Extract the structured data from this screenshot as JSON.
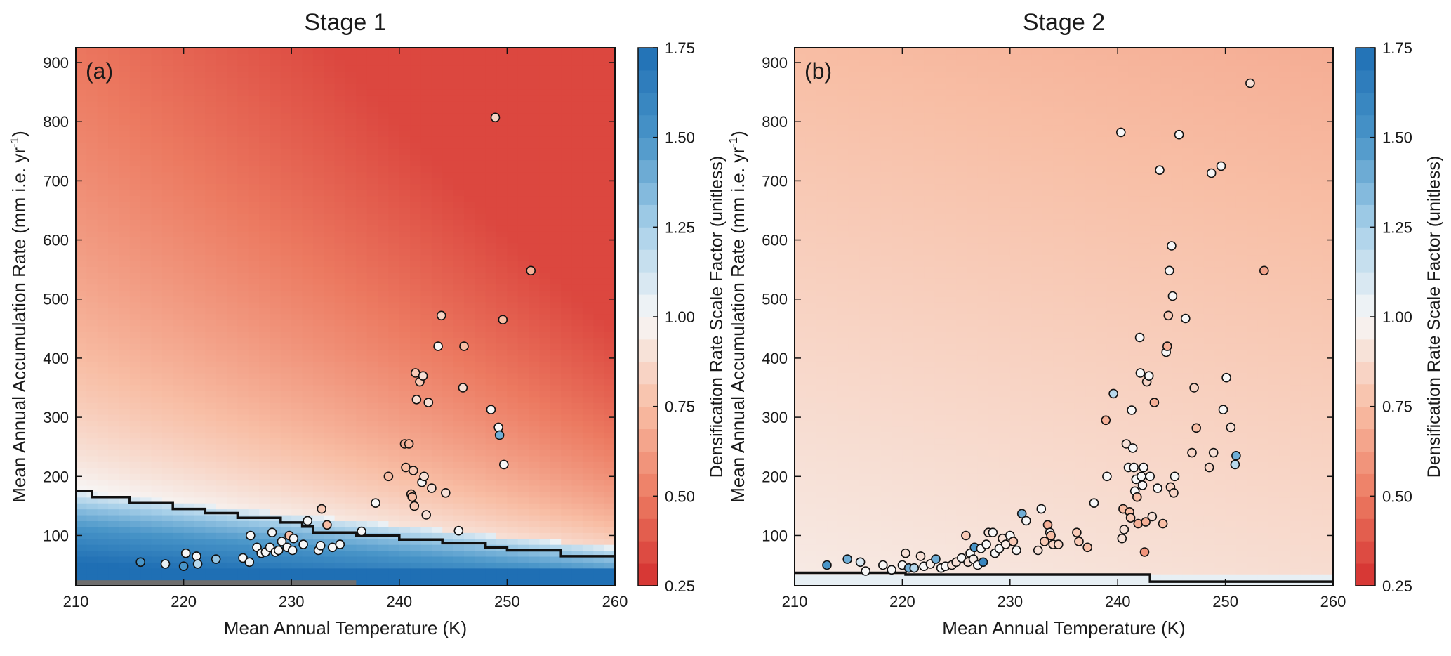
{
  "chart_data": [
    {
      "type": "scatter",
      "panel_label": "(a)",
      "title": "Stage 1",
      "xlabel": "Mean Annual Temperature (K)",
      "ylabel": "Mean Annual Accumulation Rate (mm i.e. yr",
      "ylabel_superscript": "-1",
      "ylabel_suffix": ")",
      "xlim": [
        210,
        260
      ],
      "ylim": [
        15,
        925
      ],
      "xticks": [
        210,
        220,
        230,
        240,
        250,
        260
      ],
      "yticks": [
        100,
        200,
        300,
        400,
        500,
        600,
        700,
        800,
        900
      ],
      "background": "heatmap of densification rate scale factor over temperature and accumulation rate; red (<1) at high accumulation, blue (>1) at low accumulation",
      "boundary_line": {
        "description": "stepped line where scale factor = 1",
        "points": [
          [
            210,
            175
          ],
          [
            211.5,
            175
          ],
          [
            211.5,
            165
          ],
          [
            215,
            165
          ],
          [
            215,
            155
          ],
          [
            219,
            155
          ],
          [
            219,
            145
          ],
          [
            222,
            145
          ],
          [
            222,
            138
          ],
          [
            225,
            138
          ],
          [
            225,
            130
          ],
          [
            229,
            130
          ],
          [
            229,
            122
          ],
          [
            231,
            122
          ],
          [
            231,
            115
          ],
          [
            232,
            115
          ],
          [
            232,
            105
          ],
          [
            236,
            105
          ],
          [
            236,
            100
          ],
          [
            240,
            100
          ],
          [
            240,
            93
          ],
          [
            244,
            93
          ],
          [
            244,
            87
          ],
          [
            248,
            87
          ],
          [
            248,
            80
          ],
          [
            250,
            80
          ],
          [
            250,
            75
          ],
          [
            255,
            75
          ],
          [
            255,
            65
          ],
          [
            260,
            65
          ]
        ]
      },
      "points": [
        [
          216,
          55,
          1.5
        ],
        [
          218.3,
          52,
          1.05
        ],
        [
          220.2,
          70,
          1.0
        ],
        [
          220,
          48,
          1.5
        ],
        [
          221.2,
          65,
          1.0
        ],
        [
          221.3,
          52,
          1.2
        ],
        [
          223,
          60,
          1.3
        ],
        [
          225.5,
          62,
          1.0
        ],
        [
          226.1,
          55,
          1.05
        ],
        [
          226.2,
          100,
          1.0
        ],
        [
          226.8,
          80,
          1.0
        ],
        [
          227.2,
          70,
          1.0
        ],
        [
          227.6,
          72,
          1.0
        ],
        [
          228,
          80,
          1.0
        ],
        [
          228.2,
          105,
          1.0
        ],
        [
          228.5,
          72,
          1.0
        ],
        [
          228.8,
          75,
          1.0
        ],
        [
          229.1,
          90,
          1.0
        ],
        [
          229.6,
          80,
          1.0
        ],
        [
          229.8,
          100,
          0.75
        ],
        [
          230.1,
          75,
          1.0
        ],
        [
          230.2,
          95,
          1.0
        ],
        [
          231.1,
          85,
          1.0
        ],
        [
          231.5,
          125,
          1.0
        ],
        [
          232.5,
          75,
          1.0
        ],
        [
          232.7,
          83,
          1.0
        ],
        [
          232.8,
          145,
          0.8
        ],
        [
          233.3,
          118,
          0.75
        ],
        [
          233.8,
          80,
          1.0
        ],
        [
          234.5,
          85,
          1.0
        ],
        [
          236.5,
          107,
          1.0
        ],
        [
          237.8,
          155,
          1.0
        ],
        [
          239,
          200,
          0.75
        ],
        [
          240.5,
          255,
          0.7
        ],
        [
          240.6,
          215,
          0.75
        ],
        [
          240.9,
          255,
          0.72
        ],
        [
          241.1,
          170,
          0.75
        ],
        [
          241.2,
          165,
          0.75
        ],
        [
          241.3,
          210,
          0.8
        ],
        [
          241.4,
          150,
          0.8
        ],
        [
          241.5,
          375,
          0.8
        ],
        [
          241.6,
          330,
          0.9
        ],
        [
          241.9,
          360,
          0.8
        ],
        [
          242.1,
          190,
          1.0
        ],
        [
          242.2,
          370,
          0.9
        ],
        [
          242.3,
          200,
          0.9
        ],
        [
          242.5,
          135,
          0.9
        ],
        [
          242.7,
          325,
          0.9
        ],
        [
          243,
          180,
          0.9
        ],
        [
          243.6,
          420,
          1.0
        ],
        [
          243.9,
          472,
          0.85
        ],
        [
          244.3,
          172,
          0.9
        ],
        [
          245.5,
          108,
          1.0
        ],
        [
          245.9,
          350,
          0.9
        ],
        [
          246,
          420,
          0.75
        ],
        [
          248.5,
          313,
          1.0
        ],
        [
          248.9,
          807,
          0.85
        ],
        [
          249.2,
          283,
          1.0
        ],
        [
          249.3,
          270,
          1.4
        ],
        [
          249.6,
          465,
          0.75
        ],
        [
          249.7,
          220,
          1.0
        ],
        [
          252.2,
          548,
          0.7
        ]
      ]
    },
    {
      "type": "scatter",
      "panel_label": "(b)",
      "title": "Stage 2",
      "xlabel": "Mean Annual Temperature (K)",
      "ylabel": "Mean Annual Accumulation Rate (mm i.e. yr",
      "ylabel_superscript": "-1",
      "ylabel_suffix": ")",
      "xlim": [
        210,
        260
      ],
      "ylim": [
        15,
        925
      ],
      "xticks": [
        210,
        220,
        230,
        240,
        250,
        260
      ],
      "yticks": [
        100,
        200,
        300,
        400,
        500,
        600,
        700,
        800,
        900
      ],
      "background": "heatmap of densification rate scale factor; nearly uniform light orange (~0.8-0.95)",
      "boundary_line": {
        "description": "stepped line where scale factor = 1",
        "points": [
          [
            210,
            37
          ],
          [
            220.3,
            37
          ],
          [
            220.3,
            34
          ],
          [
            243,
            34
          ],
          [
            243,
            22
          ],
          [
            260,
            22
          ]
        ]
      },
      "points": [
        [
          213,
          50,
          1.5
        ],
        [
          214.9,
          60,
          1.4
        ],
        [
          216.1,
          55,
          1.1
        ],
        [
          216.6,
          40,
          1.0
        ],
        [
          218.2,
          50,
          1.0
        ],
        [
          219,
          42,
          1.0
        ],
        [
          220,
          50,
          1.0
        ],
        [
          220.3,
          70,
          0.9
        ],
        [
          220.6,
          45,
          1.4
        ],
        [
          221.1,
          45,
          1.2
        ],
        [
          221.7,
          65,
          0.9
        ],
        [
          222,
          48,
          1.0
        ],
        [
          222.6,
          52,
          0.95
        ],
        [
          223.1,
          60,
          1.4
        ],
        [
          223.6,
          45,
          1.0
        ],
        [
          224,
          48,
          1.0
        ],
        [
          224.6,
          50,
          0.9
        ],
        [
          225,
          55,
          0.9
        ],
        [
          225.5,
          62,
          1.0
        ],
        [
          225.9,
          100,
          0.8
        ],
        [
          226.1,
          55,
          0.9
        ],
        [
          226.3,
          70,
          1.0
        ],
        [
          226.6,
          60,
          0.95
        ],
        [
          226.7,
          80,
          1.5
        ],
        [
          227,
          50,
          1.0
        ],
        [
          227.3,
          78,
          1.0
        ],
        [
          227.5,
          55,
          1.6
        ],
        [
          227.8,
          85,
          1.0
        ],
        [
          228,
          105,
          0.9
        ],
        [
          228.4,
          105,
          1.0
        ],
        [
          228.6,
          70,
          1.0
        ],
        [
          229,
          78,
          1.0
        ],
        [
          229.3,
          95,
          0.9
        ],
        [
          229.6,
          85,
          0.95
        ],
        [
          230,
          100,
          1.0
        ],
        [
          230.3,
          90,
          0.8
        ],
        [
          230.6,
          75,
          1.0
        ],
        [
          231.1,
          137,
          1.4
        ],
        [
          231.5,
          125,
          1.0
        ],
        [
          232.6,
          75,
          0.9
        ],
        [
          232.9,
          145,
          1.0
        ],
        [
          233.2,
          90,
          0.8
        ],
        [
          233.5,
          118,
          0.7
        ],
        [
          233.7,
          105,
          1.0
        ],
        [
          233.8,
          100,
          0.75
        ],
        [
          234,
          85,
          0.85
        ],
        [
          234.5,
          85,
          0.85
        ],
        [
          236.2,
          105,
          0.8
        ],
        [
          236.4,
          90,
          0.8
        ],
        [
          237.2,
          80,
          0.75
        ],
        [
          237.8,
          155,
          1.0
        ],
        [
          238.9,
          295,
          0.7
        ],
        [
          239,
          200,
          1.0
        ],
        [
          239.6,
          340,
          1.2
        ],
        [
          240.3,
          782,
          1.0
        ],
        [
          240.4,
          95,
          0.9
        ],
        [
          240.5,
          145,
          0.75
        ],
        [
          240.6,
          110,
          0.9
        ],
        [
          240.8,
          255,
          0.9
        ],
        [
          241,
          215,
          1.0
        ],
        [
          241.1,
          140,
          0.75
        ],
        [
          241.2,
          130,
          0.8
        ],
        [
          241.3,
          312,
          1.0
        ],
        [
          241.4,
          248,
          1.0
        ],
        [
          241.5,
          215,
          1.0
        ],
        [
          241.6,
          175,
          1.0
        ],
        [
          241.7,
          195,
          1.0
        ],
        [
          241.8,
          165,
          0.75
        ],
        [
          241.9,
          120,
          0.7
        ],
        [
          242.05,
          435,
          1.0
        ],
        [
          242.1,
          375,
          1.0
        ],
        [
          242.2,
          200,
          1.0
        ],
        [
          242.3,
          185,
          1.0
        ],
        [
          242.4,
          215,
          1.0
        ],
        [
          242.5,
          72,
          0.6
        ],
        [
          242.6,
          123,
          0.7
        ],
        [
          242.7,
          360,
          0.85
        ],
        [
          242.9,
          370,
          1.0
        ],
        [
          243,
          200,
          1.0
        ],
        [
          243.2,
          132,
          0.9
        ],
        [
          243.4,
          325,
          0.7
        ],
        [
          243.7,
          180,
          1.0
        ],
        [
          243.9,
          718,
          1.0
        ],
        [
          244.2,
          120,
          0.75
        ],
        [
          244.5,
          410,
          1.0
        ],
        [
          244.6,
          420,
          0.7
        ],
        [
          244.7,
          472,
          0.8
        ],
        [
          244.8,
          548,
          1.0
        ],
        [
          244.9,
          182,
          0.85
        ],
        [
          245,
          590,
          1.0
        ],
        [
          245.1,
          505,
          1.0
        ],
        [
          245.2,
          172,
          0.85
        ],
        [
          245.3,
          200,
          1.0
        ],
        [
          245.7,
          778,
          1.0
        ],
        [
          246.3,
          467,
          1.0
        ],
        [
          246.9,
          240,
          0.85
        ],
        [
          247.1,
          350,
          0.85
        ],
        [
          247.3,
          282,
          0.75
        ],
        [
          248.5,
          215,
          0.85
        ],
        [
          248.7,
          713,
          1.0
        ],
        [
          248.9,
          240,
          0.9
        ],
        [
          249.6,
          725,
          1.0
        ],
        [
          249.8,
          313,
          1.0
        ],
        [
          250.1,
          367,
          1.0
        ],
        [
          250.5,
          283,
          0.9
        ],
        [
          250.9,
          220,
          1.2
        ],
        [
          251,
          235,
          1.4
        ],
        [
          252.3,
          865,
          0.9
        ],
        [
          253.6,
          548,
          0.65
        ]
      ]
    }
  ],
  "colorbar": {
    "label": "Densification Rate Scale Factor (unitless)",
    "range": [
      0.25,
      1.75
    ],
    "ticks": [
      "0.25",
      "0.50",
      "0.75",
      "1.00",
      "1.25",
      "1.50",
      "1.75"
    ],
    "colormap": "diverging red-white-blue",
    "colors": {
      "low": "#d42f2f",
      "mid": "#f7f7f7",
      "high": "#1f6fb4"
    }
  }
}
